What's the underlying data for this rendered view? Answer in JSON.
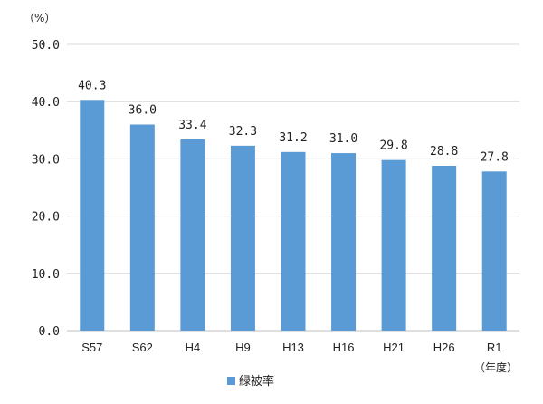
{
  "chart_data": {
    "type": "bar",
    "categories": [
      "S57",
      "S62",
      "H4",
      "H9",
      "H13",
      "H16",
      "H21",
      "H26",
      "R1"
    ],
    "values": [
      40.3,
      36.0,
      33.4,
      32.3,
      31.2,
      31.0,
      29.8,
      28.8,
      27.8
    ],
    "value_labels": [
      "40.3",
      "36.0",
      "33.4",
      "32.3",
      "31.2",
      "31.0",
      "29.8",
      "28.8",
      "27.8"
    ],
    "series_name": "緑被率",
    "y_unit_label": "（%）",
    "x_unit_label": "（年度）",
    "ylim": [
      0,
      50
    ],
    "y_ticks": [
      0,
      10,
      20,
      30,
      40,
      50
    ],
    "y_tick_labels": [
      "0.0",
      "10.0",
      "20.0",
      "30.0",
      "40.0",
      "50.0"
    ],
    "bar_color": "#5B9BD5",
    "grid": true,
    "legend_position": "bottom"
  }
}
